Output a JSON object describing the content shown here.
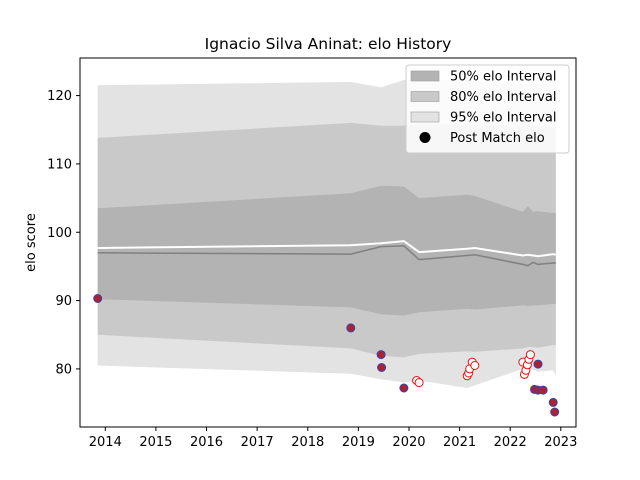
{
  "chart_data": {
    "type": "line",
    "title": "Ignacio Silva Aninat: elo History",
    "xlabel": "",
    "ylabel": "elo score",
    "xlim": [
      2013.5,
      2023.3
    ],
    "ylim": [
      71.5,
      125.5
    ],
    "x_ticks": [
      "2014",
      "2015",
      "2016",
      "2017",
      "2018",
      "2019",
      "2020",
      "2021",
      "2022",
      "2023"
    ],
    "y_ticks": [
      "80",
      "90",
      "100",
      "110",
      "120"
    ],
    "grid": false,
    "legend_position": "top-right",
    "legend": [
      {
        "label": "50% elo Interval",
        "kind": "band",
        "color": "#b3b3b3"
      },
      {
        "label": "80% elo Interval",
        "kind": "band",
        "color": "#c9c9c9"
      },
      {
        "label": "95% elo Interval",
        "kind": "band",
        "color": "#e3e3e3"
      },
      {
        "label": "Post Match elo",
        "kind": "marker",
        "color": "#000000"
      }
    ],
    "x": [
      2013.85,
      2018.85,
      2019.45,
      2019.9,
      2020.2,
      2021.15,
      2021.3,
      2022.25,
      2022.35,
      2022.45,
      2022.55,
      2022.85,
      2022.9
    ],
    "series": [
      {
        "role": "median",
        "values": [
          97.0,
          96.8,
          97.9,
          98.0,
          96.0,
          96.6,
          96.7,
          95.3,
          95.1,
          95.6,
          95.3,
          95.5,
          95.5
        ],
        "color": "#808080"
      },
      {
        "role": "mean",
        "values": [
          97.7,
          98.1,
          98.4,
          98.7,
          97.1,
          97.6,
          97.7,
          96.6,
          96.7,
          96.6,
          96.5,
          96.8,
          96.7
        ],
        "color": "#ffffff"
      },
      {
        "role": "band50",
        "lower": [
          90.2,
          89.0,
          88.0,
          87.8,
          88.3,
          88.8,
          88.7,
          89.3,
          89.2,
          89.3,
          89.3,
          89.5,
          89.5
        ],
        "upper": [
          103.5,
          105.7,
          106.8,
          106.7,
          105.0,
          105.5,
          105.3,
          103.0,
          103.8,
          103.0,
          103.1,
          102.8,
          102.8
        ],
        "color": "#b3b3b3"
      },
      {
        "role": "band80",
        "lower": [
          85.0,
          83.0,
          81.9,
          81.7,
          82.2,
          82.6,
          82.5,
          83.0,
          83.2,
          83.2,
          83.1,
          83.5,
          83.5
        ],
        "upper": [
          113.8,
          116.0,
          115.6,
          115.6,
          115.8,
          115.7,
          115.6,
          115.5,
          115.5,
          115.5,
          115.5,
          115.5,
          115.5
        ],
        "color": "#c9c9c9"
      },
      {
        "role": "band95",
        "lower": [
          80.5,
          79.3,
          78.5,
          78.0,
          78.3,
          77.2,
          77.6,
          80.0,
          80.0,
          79.9,
          79.6,
          79.8,
          79.0
        ],
        "upper": [
          121.5,
          122.0,
          121.2,
          122.3,
          122.3,
          122.3,
          122.2,
          121.7,
          121.7,
          121.7,
          121.7,
          121.7,
          121.7
        ],
        "color": "#e3e3e3"
      }
    ],
    "points": [
      {
        "x": 2013.85,
        "y": 90.3,
        "style": "filled"
      },
      {
        "x": 2018.85,
        "y": 86.0,
        "style": "filled"
      },
      {
        "x": 2019.45,
        "y": 82.1,
        "style": "filled"
      },
      {
        "x": 2019.46,
        "y": 80.2,
        "style": "filled"
      },
      {
        "x": 2019.9,
        "y": 77.2,
        "style": "filled"
      },
      {
        "x": 2020.15,
        "y": 78.3,
        "style": "hollow"
      },
      {
        "x": 2020.2,
        "y": 78.0,
        "style": "hollow"
      },
      {
        "x": 2021.15,
        "y": 79.0,
        "style": "hollow"
      },
      {
        "x": 2021.18,
        "y": 79.4,
        "style": "hollow"
      },
      {
        "x": 2021.2,
        "y": 80.0,
        "style": "hollow"
      },
      {
        "x": 2021.25,
        "y": 81.0,
        "style": "hollow"
      },
      {
        "x": 2021.3,
        "y": 80.5,
        "style": "hollow"
      },
      {
        "x": 2022.25,
        "y": 81.0,
        "style": "hollow"
      },
      {
        "x": 2022.28,
        "y": 79.2,
        "style": "hollow"
      },
      {
        "x": 2022.31,
        "y": 79.8,
        "style": "hollow"
      },
      {
        "x": 2022.34,
        "y": 80.6,
        "style": "hollow"
      },
      {
        "x": 2022.37,
        "y": 81.4,
        "style": "hollow"
      },
      {
        "x": 2022.4,
        "y": 82.1,
        "style": "hollow"
      },
      {
        "x": 2022.48,
        "y": 77.0,
        "style": "filled"
      },
      {
        "x": 2022.55,
        "y": 80.7,
        "style": "filled"
      },
      {
        "x": 2022.55,
        "y": 76.9,
        "style": "filled"
      },
      {
        "x": 2022.65,
        "y": 76.9,
        "style": "filled"
      },
      {
        "x": 2022.85,
        "y": 75.1,
        "style": "filled"
      },
      {
        "x": 2022.88,
        "y": 73.7,
        "style": "filled"
      }
    ],
    "point_colors": {
      "filled_fill": "#aa2233",
      "filled_edge": "#3344aa",
      "hollow_fill": "#ffffff",
      "hollow_edge": "#ee1111"
    }
  }
}
